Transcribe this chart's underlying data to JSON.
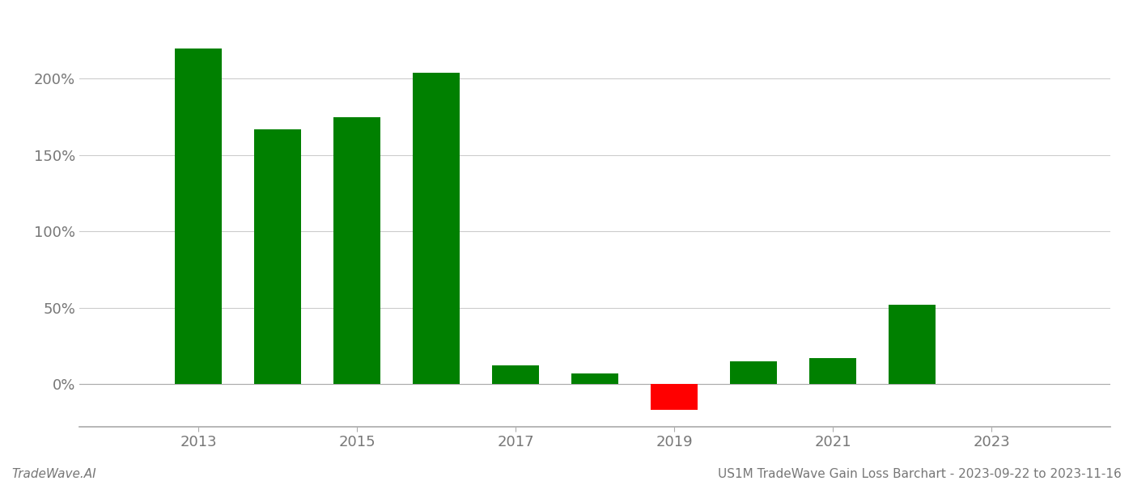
{
  "years": [
    2013,
    2014,
    2015,
    2016,
    2017,
    2018,
    2019,
    2020,
    2021,
    2022
  ],
  "values": [
    2.2,
    1.67,
    1.75,
    2.04,
    0.12,
    0.07,
    -0.17,
    0.15,
    0.17,
    0.52
  ],
  "bar_color_positive": "#008000",
  "bar_color_negative": "#ff0000",
  "background_color": "#ffffff",
  "grid_color": "#cccccc",
  "footer_left": "TradeWave.AI",
  "footer_right": "US1M TradeWave Gain Loss Barchart - 2023-09-22 to 2023-11-16",
  "ylim_min": -0.28,
  "ylim_max": 2.42,
  "yticks": [
    0.0,
    0.5,
    1.0,
    1.5,
    2.0
  ],
  "ytick_labels": [
    "0%",
    "50%",
    "100%",
    "150%",
    "200%"
  ],
  "xtick_positions": [
    2013,
    2015,
    2017,
    2019,
    2021,
    2023
  ],
  "xlim_min": 2011.5,
  "xlim_max": 2024.5,
  "text_color": "#777777",
  "footer_fontsize": 11,
  "tick_fontsize": 13,
  "bar_width": 0.6
}
